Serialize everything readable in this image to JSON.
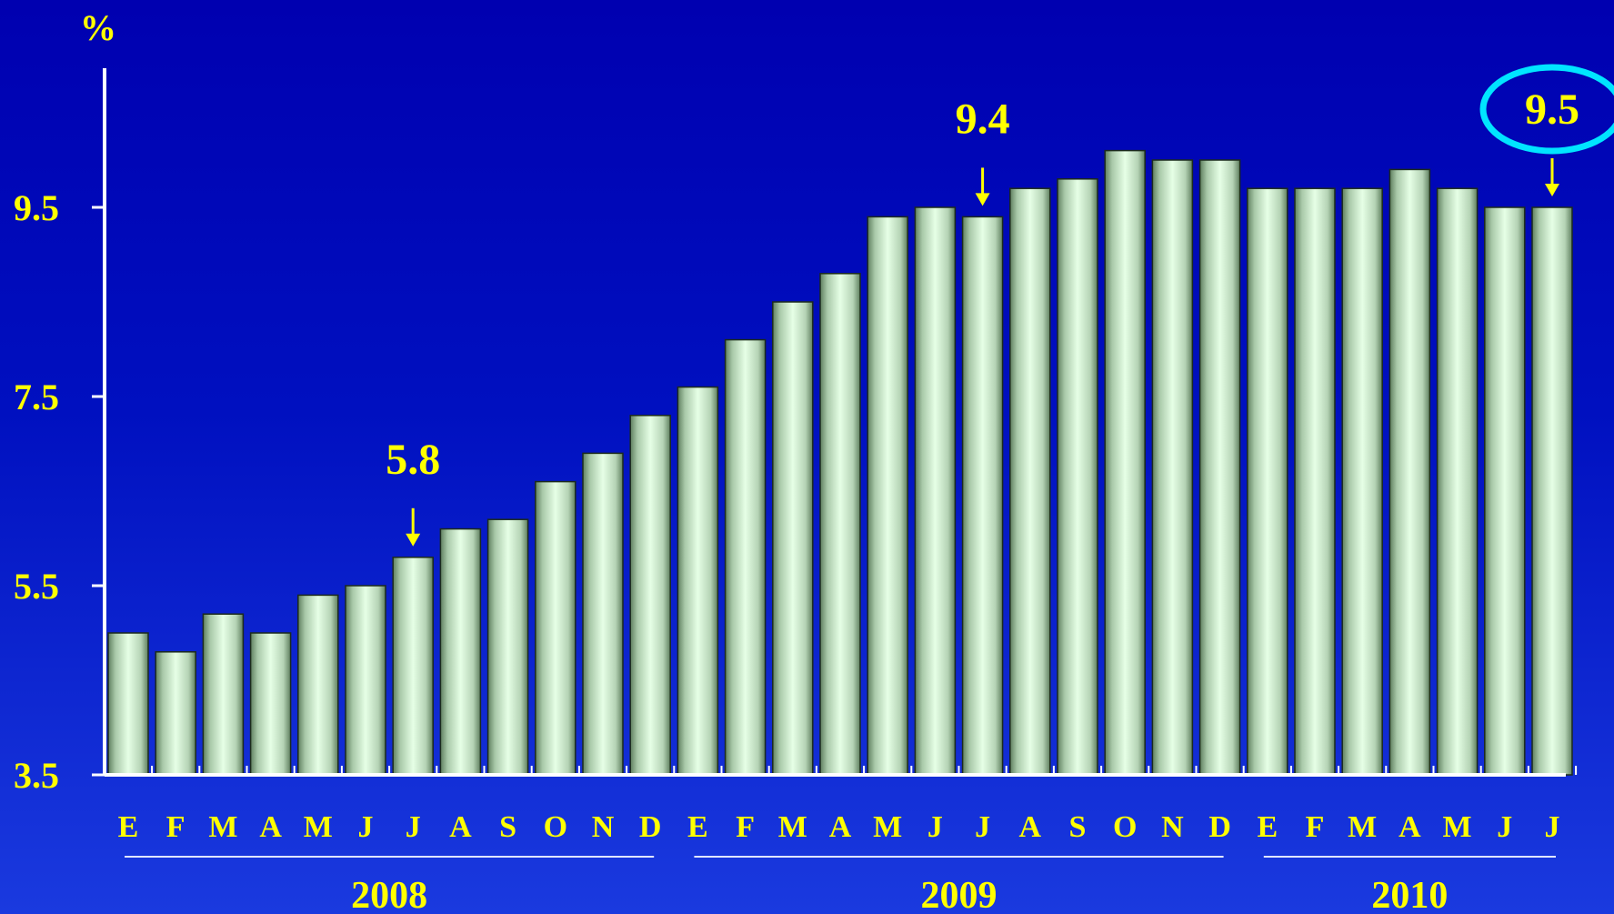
{
  "chart_data": {
    "type": "bar",
    "title": "",
    "xlabel": "",
    "ylabel": "%",
    "ylim": [
      3.5,
      10.5
    ],
    "yticks": [
      "3.5",
      "5.5",
      "7.5",
      "9.5"
    ],
    "ytick_values": [
      3.5,
      5.5,
      7.5,
      9.5
    ],
    "grid": false,
    "categories": [
      "E",
      "F",
      "M",
      "A",
      "M",
      "J",
      "J",
      "A",
      "S",
      "O",
      "N",
      "D",
      "E",
      "F",
      "M",
      "A",
      "M",
      "J",
      "J",
      "A",
      "S",
      "O",
      "N",
      "D",
      "E",
      "F",
      "M",
      "A",
      "M",
      "J",
      "J"
    ],
    "years": [
      {
        "label": "2008",
        "first_index": 0,
        "last_index": 11
      },
      {
        "label": "2009",
        "first_index": 12,
        "last_index": 23
      },
      {
        "label": "2010",
        "first_index": 24,
        "last_index": 30
      }
    ],
    "values": [
      5.0,
      4.8,
      5.2,
      5.0,
      5.4,
      5.5,
      5.8,
      6.1,
      6.2,
      6.6,
      6.9,
      7.3,
      7.6,
      8.1,
      8.5,
      8.8,
      9.4,
      9.5,
      9.4,
      9.7,
      9.8,
      10.1,
      10.0,
      10.0,
      9.7,
      9.7,
      9.7,
      9.9,
      9.7,
      9.5,
      9.5
    ],
    "annotations": [
      {
        "label": "5.8",
        "index": 6,
        "circled": false
      },
      {
        "label": "9.4",
        "index": 18,
        "circled": false
      },
      {
        "label": "9.5",
        "index": 30,
        "circled": true
      }
    ],
    "colors": {
      "bar_fill": "#d8f6d8",
      "bar_edge": "#6f8f6f",
      "axis": "#ffffff",
      "text": "#ffff00",
      "highlight_ellipse": "#00e5ff"
    }
  }
}
